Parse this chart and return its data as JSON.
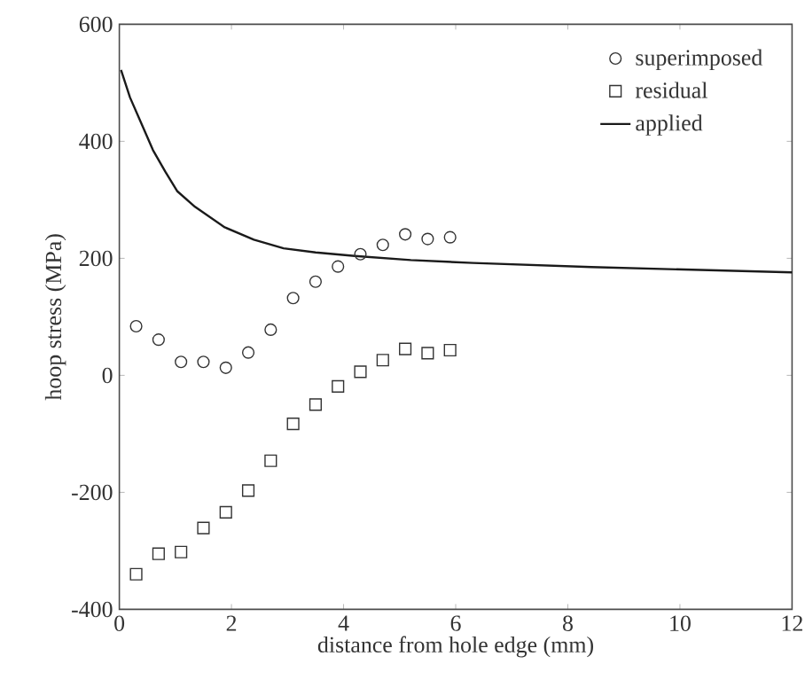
{
  "chart_data": {
    "type": "scatter",
    "xlabel": "distance from hole edge (mm)",
    "ylabel": "hoop stress (MPa)",
    "xlim": [
      0,
      12
    ],
    "ylim": [
      -400,
      600
    ],
    "xticks": [
      0,
      2,
      4,
      6,
      8,
      10,
      12
    ],
    "yticks": [
      -400,
      -200,
      0,
      200,
      400,
      600
    ],
    "legend": "top right",
    "grid": false,
    "series": [
      {
        "name": "superimposed",
        "marker": "circle",
        "color": "#333333",
        "x": [
          0.3,
          0.7,
          1.1,
          1.5,
          1.9,
          2.3,
          2.7,
          3.1,
          3.5,
          3.9,
          4.3,
          4.7,
          5.1,
          5.5,
          5.9
        ],
        "values": [
          84,
          61,
          23,
          23,
          13,
          39,
          78,
          132,
          160,
          186,
          207,
          223,
          241,
          233,
          236
        ]
      },
      {
        "name": "residual",
        "marker": "square",
        "color": "#333333",
        "x": [
          0.3,
          0.7,
          1.1,
          1.5,
          1.9,
          2.3,
          2.7,
          3.1,
          3.5,
          3.9,
          4.3,
          4.7,
          5.1,
          5.5,
          5.9
        ],
        "values": [
          -340,
          -305,
          -302,
          -261,
          -234,
          -197,
          -146,
          -83,
          -50,
          -19,
          6,
          26,
          45,
          38,
          43
        ]
      },
      {
        "name": "applied",
        "type": "line",
        "marker": "none",
        "line_style": "solid",
        "color": "#1a1a1a",
        "x": [
          0.03,
          0.19,
          0.4,
          0.6,
          0.82,
          1.03,
          1.35,
          1.88,
          2.4,
          2.93,
          3.5,
          4.2,
          5.2,
          6.31,
          8.42,
          12
        ],
        "values": [
          522,
          475,
          429,
          385,
          348,
          315,
          288,
          253,
          232,
          217,
          210,
          204,
          197,
          192,
          185,
          176
        ]
      }
    ]
  }
}
